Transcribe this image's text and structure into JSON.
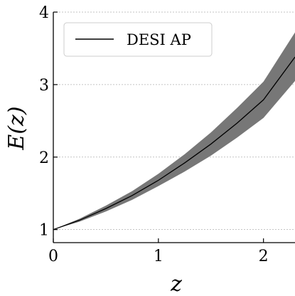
{
  "chart_data": {
    "type": "line",
    "title": "",
    "xlabel": "z",
    "ylabel": "E(z)",
    "xlim": [
      0,
      2.3
    ],
    "ylim": [
      0.82,
      4.0
    ],
    "xticks": [
      0,
      1,
      2
    ],
    "yticks": [
      1,
      2,
      3,
      4
    ],
    "grid": "horizontal dashed",
    "legend_position": "top-left",
    "series": [
      {
        "name": "DESI AP",
        "color": "#000000",
        "band_color": "#777777",
        "x": [
          0.0,
          0.25,
          0.5,
          0.75,
          1.0,
          1.25,
          1.5,
          1.75,
          2.0,
          2.3
        ],
        "y": [
          1.0,
          1.13,
          1.29,
          1.47,
          1.68,
          1.92,
          2.18,
          2.47,
          2.79,
          3.38
        ],
        "lower": [
          1.0,
          1.11,
          1.25,
          1.41,
          1.6,
          1.8,
          2.02,
          2.27,
          2.54,
          3.05
        ],
        "upper": [
          1.0,
          1.15,
          1.33,
          1.53,
          1.77,
          2.04,
          2.34,
          2.68,
          3.04,
          3.72
        ]
      }
    ]
  }
}
